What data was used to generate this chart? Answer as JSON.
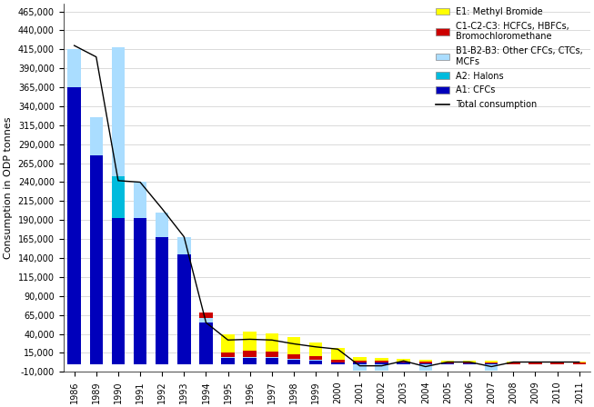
{
  "years": [
    "1986",
    "1989",
    "1990",
    "1991",
    "1992",
    "1993",
    "1994",
    "1995",
    "1996",
    "1997",
    "1998",
    "1999",
    "2000",
    "2001",
    "2002",
    "2003",
    "2004",
    "2005",
    "2006",
    "2007",
    "2008",
    "2009",
    "2010",
    "2011"
  ],
  "A1_CFCs": [
    365000,
    275000,
    193000,
    193000,
    168000,
    145000,
    55000,
    8000,
    8000,
    8000,
    6000,
    5000,
    3000,
    2000,
    2000,
    2000,
    1500,
    1000,
    800,
    800,
    600,
    600,
    600,
    600
  ],
  "A2_Halons": [
    0,
    0,
    55000,
    0,
    0,
    0,
    0,
    0,
    0,
    0,
    0,
    0,
    0,
    0,
    0,
    0,
    0,
    0,
    0,
    0,
    0,
    0,
    0,
    0
  ],
  "B1B2B3": [
    50000,
    50000,
    170000,
    47000,
    32000,
    22000,
    6000,
    2000,
    2000,
    2000,
    1000,
    500,
    0,
    -8000,
    -8000,
    0,
    -8500,
    0,
    0,
    -8000,
    0,
    0,
    0,
    0
  ],
  "C1C2C3": [
    0,
    0,
    0,
    0,
    0,
    0,
    7000,
    5000,
    7500,
    7000,
    6500,
    5000,
    3000,
    3000,
    2500,
    2000,
    2000,
    1500,
    1500,
    1500,
    1500,
    1500,
    1500,
    1500
  ],
  "E1_MeBr": [
    0,
    0,
    0,
    0,
    0,
    0,
    0,
    25000,
    25000,
    24000,
    22000,
    18000,
    15000,
    4000,
    4000,
    3000,
    2500,
    2000,
    2000,
    2000,
    2000,
    1500,
    1500,
    1500
  ],
  "total": [
    420000,
    405000,
    242000,
    240000,
    205000,
    168000,
    55000,
    32000,
    33000,
    32000,
    27000,
    23000,
    20000,
    -2000,
    -2000,
    4500,
    -3000,
    3000,
    3000,
    -3000,
    3000,
    3000,
    3000,
    3000
  ],
  "ylabel": "Consumption in ODP tonnes",
  "ylim": [
    -10000,
    475000
  ],
  "yticks": [
    -10000,
    15000,
    40000,
    65000,
    90000,
    115000,
    140000,
    165000,
    190000,
    215000,
    240000,
    265000,
    290000,
    315000,
    340000,
    365000,
    390000,
    415000,
    440000,
    465000
  ],
  "ytick_labels": [
    "-10,000",
    "15,000",
    "40,000",
    "65,000",
    "90,000",
    "115,000",
    "140,000",
    "165,000",
    "190,000",
    "215,000",
    "240,000",
    "265,000",
    "290,000",
    "315,000",
    "340,000",
    "365,000",
    "390,000",
    "415,000",
    "440,000",
    "465,000"
  ],
  "color_A1": "#0000BB",
  "color_A2": "#00BBDD",
  "color_B1B2B3": "#AADDFF",
  "color_C1C2C3": "#CC0000",
  "color_E1": "#FFFF00",
  "color_total": "#000000"
}
